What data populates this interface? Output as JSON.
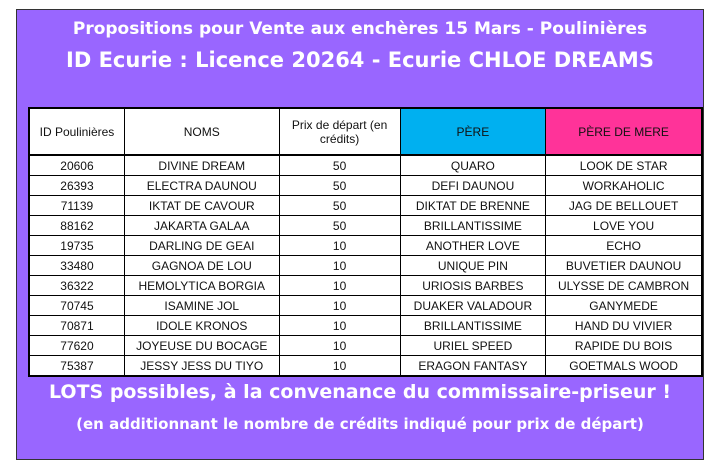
{
  "title_line1": "Propositions pour Vente aux enchères 15 Mars - Poulinières",
  "title_line2": "ID Ecurie : Licence 20264 - Ecurie CHLOE DREAMS",
  "columns": [
    "ID Poulinières",
    "NOMS",
    "Prix de départ (en crédits)",
    "PÈRE",
    "PÈRE DE MERE"
  ],
  "header_colors": {
    "pere": "#00b0f0",
    "pere_de_mere": "#ff3399",
    "frame": "#9966ff"
  },
  "rows": [
    [
      "20606",
      "DIVINE DREAM",
      "50",
      "QUARO",
      "LOOK DE STAR"
    ],
    [
      "26393",
      "ELECTRA DAUNOU",
      "50",
      "DEFI DAUNOU",
      "WORKAHOLIC"
    ],
    [
      "71139",
      "IKTAT DE CAVOUR",
      "50",
      "DIKTAT DE BRENNE",
      "JAG DE BELLOUET"
    ],
    [
      "88162",
      "JAKARTA GALAA",
      "50",
      "BRILLANTISSIME",
      "LOVE YOU"
    ],
    [
      "19735",
      "DARLING DE GEAI",
      "10",
      "ANOTHER LOVE",
      "ECHO"
    ],
    [
      "33480",
      "GAGNOA DE LOU",
      "10",
      "UNIQUE PIN",
      "BUVETIER DAUNOU"
    ],
    [
      "36322",
      "HEMOLYTICA BORGIA",
      "10",
      "URIOSIS BARBES",
      "ULYSSE DE CAMBRON"
    ],
    [
      "70745",
      "ISAMINE JOL",
      "10",
      "DUAKER VALADOUR",
      "GANYMEDE"
    ],
    [
      "70871",
      "IDOLE KRONOS",
      "10",
      "BRILLANTISSIME",
      "HAND DU VIVIER"
    ],
    [
      "77620",
      "JOYEUSE DU BOCAGE",
      "10",
      "URIEL SPEED",
      "RAPIDE DU BOIS"
    ],
    [
      "75387",
      "JESSY JESS DU TIYO",
      "10",
      "ERAGON FANTASY",
      "GOETMALS WOOD"
    ]
  ],
  "footer_line1": "LOTS possibles, à la convenance du commissaire-priseur !",
  "footer_line2": "(en additionnant le nombre de crédits indiqué pour prix de départ)"
}
